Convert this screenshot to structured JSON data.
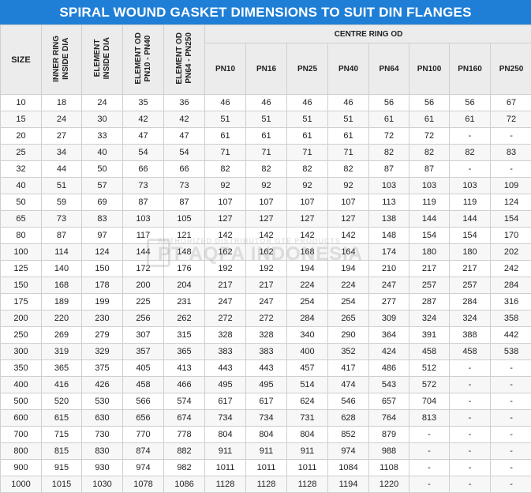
{
  "title": "SPIRAL WOUND GASKET DIMENSIONS TO SUIT DIN FLANGES",
  "headers": {
    "size": "SIZE",
    "inner_ring": "INNER RING\nINSIDE DIA",
    "element": "ELEMENT\nINSIDE DIA",
    "element_od_1": "ELEMENT OD\nPN10 - PN40",
    "element_od_2": "ELEMENT OD\nPN64 - PN250",
    "centre_ring": "CENTRE RING OD",
    "pn": [
      "PN10",
      "PN16",
      "PN25",
      "PN40",
      "PN64",
      "PN100",
      "PN160",
      "PN250"
    ]
  },
  "rows": [
    [
      "10",
      "18",
      "24",
      "35",
      "36",
      "46",
      "46",
      "46",
      "46",
      "56",
      "56",
      "56",
      "67"
    ],
    [
      "15",
      "24",
      "30",
      "42",
      "42",
      "51",
      "51",
      "51",
      "51",
      "61",
      "61",
      "61",
      "72"
    ],
    [
      "20",
      "27",
      "33",
      "47",
      "47",
      "61",
      "61",
      "61",
      "61",
      "72",
      "72",
      "-",
      "-"
    ],
    [
      "25",
      "34",
      "40",
      "54",
      "54",
      "71",
      "71",
      "71",
      "71",
      "82",
      "82",
      "82",
      "83"
    ],
    [
      "32",
      "44",
      "50",
      "66",
      "66",
      "82",
      "82",
      "82",
      "82",
      "87",
      "87",
      "-",
      "-"
    ],
    [
      "40",
      "51",
      "57",
      "73",
      "73",
      "92",
      "92",
      "92",
      "92",
      "103",
      "103",
      "103",
      "109"
    ],
    [
      "50",
      "59",
      "69",
      "87",
      "87",
      "107",
      "107",
      "107",
      "107",
      "113",
      "119",
      "119",
      "124"
    ],
    [
      "65",
      "73",
      "83",
      "103",
      "105",
      "127",
      "127",
      "127",
      "127",
      "138",
      "144",
      "144",
      "154"
    ],
    [
      "80",
      "87",
      "97",
      "117",
      "121",
      "142",
      "142",
      "142",
      "142",
      "148",
      "154",
      "154",
      "170"
    ],
    [
      "100",
      "114",
      "124",
      "144",
      "148",
      "162",
      "162",
      "168",
      "164",
      "174",
      "180",
      "180",
      "202"
    ],
    [
      "125",
      "140",
      "150",
      "172",
      "176",
      "192",
      "192",
      "194",
      "194",
      "210",
      "217",
      "217",
      "242"
    ],
    [
      "150",
      "168",
      "178",
      "200",
      "204",
      "217",
      "217",
      "224",
      "224",
      "247",
      "257",
      "257",
      "284"
    ],
    [
      "175",
      "189",
      "199",
      "225",
      "231",
      "247",
      "247",
      "254",
      "254",
      "277",
      "287",
      "284",
      "316"
    ],
    [
      "200",
      "220",
      "230",
      "256",
      "262",
      "272",
      "272",
      "284",
      "265",
      "309",
      "324",
      "324",
      "358"
    ],
    [
      "250",
      "269",
      "279",
      "307",
      "315",
      "328",
      "328",
      "340",
      "290",
      "364",
      "391",
      "388",
      "442"
    ],
    [
      "300",
      "319",
      "329",
      "357",
      "365",
      "383",
      "383",
      "400",
      "352",
      "424",
      "458",
      "458",
      "538"
    ],
    [
      "350",
      "365",
      "375",
      "405",
      "413",
      "443",
      "443",
      "457",
      "417",
      "486",
      "512",
      "-",
      "-"
    ],
    [
      "400",
      "416",
      "426",
      "458",
      "466",
      "495",
      "495",
      "514",
      "474",
      "543",
      "572",
      "-",
      "-"
    ],
    [
      "500",
      "520",
      "530",
      "566",
      "574",
      "617",
      "617",
      "624",
      "546",
      "657",
      "704",
      "-",
      "-"
    ],
    [
      "600",
      "615",
      "630",
      "656",
      "674",
      "734",
      "734",
      "731",
      "628",
      "764",
      "813",
      "-",
      "-"
    ],
    [
      "700",
      "715",
      "730",
      "770",
      "778",
      "804",
      "804",
      "804",
      "852",
      "879",
      "-",
      "-",
      "-"
    ],
    [
      "800",
      "815",
      "830",
      "874",
      "882",
      "911",
      "911",
      "911",
      "974",
      "988",
      "-",
      "-",
      "-"
    ],
    [
      "900",
      "915",
      "930",
      "974",
      "982",
      "1011",
      "1011",
      "1011",
      "1084",
      "1108",
      "-",
      "-",
      "-"
    ],
    [
      "1000",
      "1015",
      "1030",
      "1078",
      "1086",
      "1128",
      "1128",
      "1128",
      "1194",
      "1220",
      "-",
      "-",
      "-"
    ]
  ],
  "watermark": {
    "line1": "AUTHORIZED DISTRIBUTOR GTE PRODUCTS",
    "line2": "PT AQPA INDONESIA"
  }
}
